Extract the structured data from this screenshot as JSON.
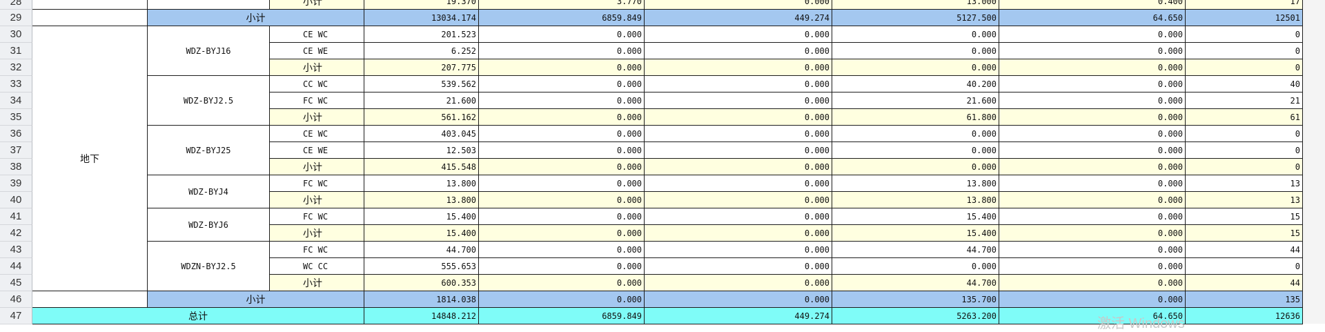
{
  "sheet": {
    "columns": [
      "area",
      "cable",
      "laying",
      "c1",
      "c2",
      "c3",
      "c4",
      "c5",
      "c6"
    ],
    "rows": [
      {
        "num": "28",
        "kind": "partial",
        "c": [
          "19.370",
          "3.770",
          "0.000",
          "13.000",
          "0.400",
          "17"
        ]
      },
      {
        "num": "29",
        "kind": "subtotal",
        "label": "小计",
        "c": [
          "13034.174",
          "6859.849",
          "449.274",
          "5127.500",
          "64.650",
          "12501"
        ]
      },
      {
        "num": "30",
        "laying": "CE WC",
        "c": [
          "201.523",
          "0.000",
          "0.000",
          "0.000",
          "0.000",
          "0"
        ]
      },
      {
        "num": "31",
        "laying": "CE WE",
        "c": [
          "6.252",
          "0.000",
          "0.000",
          "0.000",
          "0.000",
          "0"
        ]
      },
      {
        "num": "32",
        "laying": "小计",
        "sub": true,
        "c": [
          "207.775",
          "0.000",
          "0.000",
          "0.000",
          "0.000",
          "0"
        ]
      },
      {
        "num": "33",
        "laying": "CC WC",
        "c": [
          "539.562",
          "0.000",
          "0.000",
          "40.200",
          "0.000",
          "40"
        ]
      },
      {
        "num": "34",
        "laying": "FC WC",
        "c": [
          "21.600",
          "0.000",
          "0.000",
          "21.600",
          "0.000",
          "21"
        ]
      },
      {
        "num": "35",
        "laying": "小计",
        "sub": true,
        "c": [
          "561.162",
          "0.000",
          "0.000",
          "61.800",
          "0.000",
          "61"
        ]
      },
      {
        "num": "36",
        "laying": "CE WC",
        "c": [
          "403.045",
          "0.000",
          "0.000",
          "0.000",
          "0.000",
          "0"
        ]
      },
      {
        "num": "37",
        "laying": "CE WE",
        "c": [
          "12.503",
          "0.000",
          "0.000",
          "0.000",
          "0.000",
          "0"
        ]
      },
      {
        "num": "38",
        "laying": "小计",
        "sub": true,
        "c": [
          "415.548",
          "0.000",
          "0.000",
          "0.000",
          "0.000",
          "0"
        ]
      },
      {
        "num": "39",
        "laying": "FC WC",
        "c": [
          "13.800",
          "0.000",
          "0.000",
          "13.800",
          "0.000",
          "13"
        ]
      },
      {
        "num": "40",
        "laying": "小计",
        "sub": true,
        "c": [
          "13.800",
          "0.000",
          "0.000",
          "13.800",
          "0.000",
          "13"
        ]
      },
      {
        "num": "41",
        "laying": "FC WC",
        "c": [
          "15.400",
          "0.000",
          "0.000",
          "15.400",
          "0.000",
          "15"
        ]
      },
      {
        "num": "42",
        "laying": "小计",
        "sub": true,
        "c": [
          "15.400",
          "0.000",
          "0.000",
          "15.400",
          "0.000",
          "15"
        ]
      },
      {
        "num": "43",
        "laying": "FC WC",
        "c": [
          "44.700",
          "0.000",
          "0.000",
          "44.700",
          "0.000",
          "44"
        ]
      },
      {
        "num": "44",
        "laying": "WC CC",
        "c": [
          "555.653",
          "0.000",
          "0.000",
          "0.000",
          "0.000",
          "0"
        ]
      },
      {
        "num": "45",
        "laying": "小计",
        "sub": true,
        "c": [
          "600.353",
          "0.000",
          "0.000",
          "44.700",
          "0.000",
          "44"
        ]
      },
      {
        "num": "46",
        "kind": "subtotal",
        "label": "小计",
        "c": [
          "1814.038",
          "0.000",
          "0.000",
          "135.700",
          "0.000",
          "135"
        ]
      },
      {
        "num": "47",
        "kind": "total",
        "label": "总计",
        "c": [
          "14848.212",
          "6859.849",
          "449.274",
          "5263.200",
          "64.650",
          "12636"
        ]
      }
    ],
    "area_label": "地下",
    "cables": [
      {
        "name": "WDZ-BYJ16",
        "from": 2,
        "span": 3
      },
      {
        "name": "WDZ-BYJ2.5",
        "from": 5,
        "span": 3
      },
      {
        "name": "WDZ-BYJ25",
        "from": 8,
        "span": 3
      },
      {
        "name": "WDZ-BYJ4",
        "from": 11,
        "span": 2
      },
      {
        "name": "WDZ-BYJ6",
        "from": 13,
        "span": 2
      },
      {
        "name": "WDZN-BYJ2.5",
        "from": 15,
        "span": 3
      }
    ],
    "row28_laying": "小计"
  },
  "watermark": "激活 Windows",
  "colors": {
    "subtotal_bg": "#a4c8f0",
    "total_bg": "#7ffcf8",
    "sub_row_bg": "#ffffe0",
    "row_header_bg": "#eef0f3"
  }
}
